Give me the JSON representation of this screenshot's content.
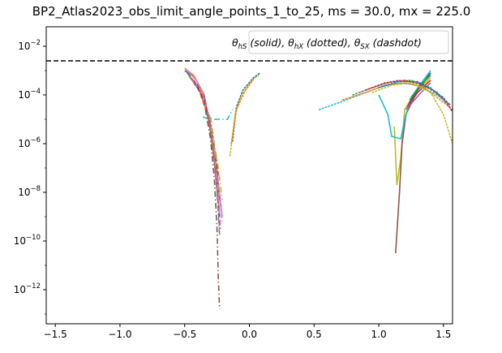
{
  "chart_data": {
    "type": "line",
    "title": "BP2_Atlas2023_obs_limit_angle_points_1_to_25, ms = 30.0, mx = 225.0",
    "xlabel": "",
    "ylabel": "",
    "xlim": [
      -1.57,
      1.57
    ],
    "ylim_log10": [
      -13.4,
      -1.2
    ],
    "y_scale": "log",
    "x_ticks": [
      -1.5,
      -1.0,
      -0.5,
      0.0,
      0.5,
      1.0,
      1.5
    ],
    "x_tick_labels": [
      "−1.5",
      "−1.0",
      "−0.5",
      "0.0",
      "0.5",
      "1.0",
      "1.5"
    ],
    "y_ticks_log10": [
      -12,
      -10,
      -8,
      -6,
      -4,
      -2
    ],
    "y_tick_bases": [
      "10",
      "10",
      "10",
      "10",
      "10",
      "10"
    ],
    "y_tick_exponents": [
      "−12",
      "−10",
      "−8",
      "−6",
      "−4",
      "−2"
    ],
    "legend": {
      "placement": "top-right",
      "parts": [
        {
          "main": "θ",
          "sub": "hS",
          "desc": " (solid), "
        },
        {
          "main": "θ",
          "sub": "hX",
          "desc": " (dotted), "
        },
        {
          "main": "θ",
          "sub": "SX",
          "desc": " (dashdot)"
        }
      ]
    },
    "limit_line": {
      "y_log10": -2.6,
      "style": "dashed",
      "color": "#000000"
    },
    "series": [
      {
        "color": "#1f77b4",
        "dash": "solid",
        "points": [
          [
            -0.5,
            -3.0
          ],
          [
            -0.42,
            -3.3
          ],
          [
            -0.35,
            -4.0
          ],
          [
            -0.3,
            -5.3
          ],
          [
            -0.26,
            -7.0
          ],
          [
            -0.23,
            -9.0
          ]
        ]
      },
      {
        "color": "#ff7f0e",
        "dash": "solid",
        "points": [
          [
            -0.5,
            -2.9
          ],
          [
            -0.43,
            -3.2
          ],
          [
            -0.36,
            -3.9
          ],
          [
            -0.31,
            -5.2
          ],
          [
            -0.27,
            -6.8
          ],
          [
            -0.24,
            -8.5
          ]
        ]
      },
      {
        "color": "#e377c2",
        "dash": "solid",
        "points": [
          [
            -0.49,
            -2.95
          ],
          [
            -0.41,
            -3.4
          ],
          [
            -0.34,
            -4.3
          ],
          [
            -0.29,
            -5.6
          ],
          [
            -0.25,
            -7.2
          ],
          [
            -0.21,
            -9.0
          ]
        ]
      },
      {
        "color": "#bcbd22",
        "dash": "solid",
        "points": [
          [
            1.12,
            -5.3
          ],
          [
            1.14,
            -7.7
          ],
          [
            1.17,
            -6.6
          ],
          [
            1.2,
            -4.6
          ],
          [
            1.28,
            -3.9
          ],
          [
            1.4,
            -3.3
          ]
        ]
      },
      {
        "color": "#8c564b",
        "dash": "solid",
        "points": [
          [
            1.13,
            -10.5
          ],
          [
            1.16,
            -8.0
          ],
          [
            1.18,
            -6.0
          ],
          [
            1.21,
            -4.8
          ],
          [
            1.3,
            -3.8
          ],
          [
            1.4,
            -3.1
          ]
        ]
      },
      {
        "color": "#17becf",
        "dash": "solid",
        "points": [
          [
            1.0,
            -4.0
          ],
          [
            1.07,
            -4.8
          ],
          [
            1.1,
            -5.7
          ],
          [
            1.17,
            -5.8
          ],
          [
            1.2,
            -5.0
          ],
          [
            1.25,
            -4.1
          ],
          [
            1.33,
            -3.5
          ],
          [
            1.4,
            -3.0
          ]
        ]
      },
      {
        "color": "#2c5f8a",
        "dash": "solid",
        "points": [
          [
            1.23,
            -4.4
          ],
          [
            1.3,
            -3.8
          ],
          [
            1.36,
            -3.4
          ],
          [
            1.4,
            -3.1
          ]
        ]
      },
      {
        "color": "#2ca02c",
        "dash": "solid",
        "points": [
          [
            1.24,
            -4.2
          ],
          [
            1.32,
            -3.6
          ],
          [
            1.4,
            -3.2
          ]
        ]
      },
      {
        "color": "#d62728",
        "dash": "solid",
        "points": [
          [
            1.22,
            -4.5
          ],
          [
            1.3,
            -3.9
          ],
          [
            1.4,
            -3.4
          ]
        ]
      },
      {
        "color": "#9467bd",
        "dash": "solid",
        "points": [
          [
            1.21,
            -4.6
          ],
          [
            1.31,
            -4.0
          ],
          [
            1.4,
            -3.5
          ]
        ]
      },
      {
        "color": "#1f77b4",
        "dash": "dashed",
        "points": [
          [
            -0.48,
            -3.1
          ],
          [
            -0.4,
            -3.6
          ],
          [
            -0.33,
            -4.6
          ],
          [
            -0.28,
            -6.1
          ],
          [
            -0.25,
            -7.8
          ],
          [
            -0.23,
            -9.5
          ]
        ]
      },
      {
        "color": "#ff7f0e",
        "dash": "dashed",
        "points": [
          [
            -0.47,
            -3.2
          ],
          [
            -0.39,
            -3.8
          ],
          [
            -0.32,
            -4.9
          ],
          [
            -0.27,
            -6.5
          ],
          [
            -0.24,
            -8.2
          ]
        ]
      },
      {
        "color": "#2ca02c",
        "dash": "dashed",
        "points": [
          [
            -0.46,
            -3.25
          ],
          [
            -0.38,
            -3.9
          ],
          [
            -0.31,
            -5.0
          ],
          [
            -0.27,
            -6.6
          ],
          [
            -0.23,
            -8.4
          ]
        ]
      },
      {
        "color": "#9467bd",
        "dash": "dashed",
        "points": [
          [
            -0.45,
            -3.3
          ],
          [
            -0.37,
            -4.0
          ],
          [
            -0.3,
            -5.1
          ],
          [
            -0.26,
            -6.7
          ],
          [
            -0.22,
            -8.6
          ]
        ]
      },
      {
        "color": "#e377c2",
        "dash": "dashed",
        "points": [
          [
            -0.44,
            -3.35
          ],
          [
            -0.36,
            -4.1
          ],
          [
            -0.3,
            -5.3
          ],
          [
            -0.25,
            -7.0
          ],
          [
            -0.21,
            -9.2
          ]
        ]
      },
      {
        "color": "#d62728",
        "dash": "dashed",
        "points": [
          [
            -0.43,
            -3.4
          ],
          [
            -0.35,
            -4.2
          ],
          [
            -0.29,
            -5.5
          ],
          [
            -0.24,
            -7.3
          ]
        ]
      },
      {
        "color": "#1f77b4",
        "dash": "dotted",
        "points": [
          [
            -0.13,
            -5.9
          ],
          [
            -0.1,
            -4.5
          ],
          [
            -0.05,
            -3.8
          ],
          [
            0.03,
            -3.3
          ],
          [
            0.08,
            -3.1
          ]
        ]
      },
      {
        "color": "#bcbd22",
        "dash": "dotted",
        "points": [
          [
            -0.15,
            -6.5
          ],
          [
            -0.11,
            -4.8
          ],
          [
            -0.06,
            -4.0
          ],
          [
            0.02,
            -3.4
          ],
          [
            0.07,
            -3.2
          ]
        ]
      },
      {
        "color": "#ff7f0e",
        "dash": "dotted",
        "points": [
          [
            -0.14,
            -6.0
          ],
          [
            -0.1,
            -4.6
          ],
          [
            -0.04,
            -3.9
          ],
          [
            0.04,
            -3.3
          ]
        ]
      },
      {
        "color": "#17becf",
        "dash": "dotted",
        "points": [
          [
            0.54,
            -4.6
          ],
          [
            0.7,
            -4.3
          ],
          [
            0.85,
            -4.0
          ],
          [
            1.0,
            -3.7
          ],
          [
            1.15,
            -3.5
          ],
          [
            1.3,
            -3.6
          ],
          [
            1.45,
            -4.0
          ],
          [
            1.55,
            -4.4
          ]
        ]
      },
      {
        "color": "#ff7f0e",
        "dash": "dotted",
        "points": [
          [
            0.72,
            -4.2
          ],
          [
            0.9,
            -3.9
          ],
          [
            1.05,
            -3.6
          ],
          [
            1.2,
            -3.5
          ],
          [
            1.35,
            -3.7
          ],
          [
            1.5,
            -4.3
          ],
          [
            1.57,
            -4.6
          ]
        ]
      },
      {
        "color": "#2ca02c",
        "dash": "dotted",
        "points": [
          [
            0.8,
            -4.0
          ],
          [
            0.95,
            -3.7
          ],
          [
            1.1,
            -3.45
          ],
          [
            1.25,
            -3.4
          ],
          [
            1.4,
            -3.7
          ],
          [
            1.52,
            -4.3
          ]
        ]
      },
      {
        "color": "#9467bd",
        "dash": "dotted",
        "points": [
          [
            0.85,
            -3.9
          ],
          [
            1.0,
            -3.6
          ],
          [
            1.15,
            -3.4
          ],
          [
            1.3,
            -3.5
          ],
          [
            1.45,
            -3.9
          ],
          [
            1.55,
            -4.5
          ]
        ]
      },
      {
        "color": "#d62728",
        "dash": "dotted",
        "points": [
          [
            0.9,
            -3.8
          ],
          [
            1.05,
            -3.5
          ],
          [
            1.2,
            -3.4
          ],
          [
            1.35,
            -3.6
          ],
          [
            1.5,
            -4.1
          ],
          [
            1.57,
            -4.7
          ]
        ]
      },
      {
        "color": "#bcbd22",
        "dash": "dotted",
        "points": [
          [
            0.95,
            -3.9
          ],
          [
            1.1,
            -3.6
          ],
          [
            1.25,
            -3.5
          ],
          [
            1.4,
            -3.9
          ],
          [
            1.5,
            -4.8
          ],
          [
            1.57,
            -6.0
          ]
        ]
      },
      {
        "color": "#1f77b4",
        "dash": "dotted",
        "points": [
          [
            1.0,
            -3.7
          ],
          [
            1.15,
            -3.45
          ],
          [
            1.3,
            -3.45
          ],
          [
            1.45,
            -3.9
          ],
          [
            1.55,
            -4.4
          ]
        ]
      },
      {
        "color": "#17becf",
        "dash": "dashdot",
        "points": [
          [
            -0.36,
            -4.9
          ],
          [
            -0.3,
            -5.0
          ],
          [
            -0.22,
            -5.0
          ],
          [
            -0.17,
            -5.0
          ],
          [
            -0.13,
            -4.6
          ]
        ]
      },
      {
        "color": "#8c564b",
        "dash": "dashdot",
        "points": [
          [
            -0.34,
            -4.6
          ],
          [
            -0.3,
            -5.8
          ],
          [
            -0.27,
            -7.5
          ],
          [
            -0.25,
            -9.5
          ],
          [
            -0.24,
            -11.5
          ],
          [
            -0.23,
            -12.8
          ]
        ]
      },
      {
        "color": "#bcbd22",
        "dash": "dashdot",
        "points": [
          [
            -0.3,
            -4.9
          ],
          [
            -0.27,
            -6.0
          ],
          [
            -0.24,
            -7.0
          ],
          [
            -0.21,
            -8.3
          ]
        ]
      },
      {
        "color": "#7f7f7f",
        "dash": "dashdot",
        "points": [
          [
            -0.32,
            -4.7
          ],
          [
            -0.28,
            -6.2
          ],
          [
            -0.25,
            -8.0
          ],
          [
            -0.23,
            -9.8
          ]
        ]
      },
      {
        "color": "#e377c2",
        "dash": "dashdot",
        "points": [
          [
            -0.31,
            -4.8
          ],
          [
            -0.27,
            -6.3
          ],
          [
            -0.24,
            -8.2
          ],
          [
            -0.22,
            -9.6
          ]
        ]
      }
    ]
  }
}
